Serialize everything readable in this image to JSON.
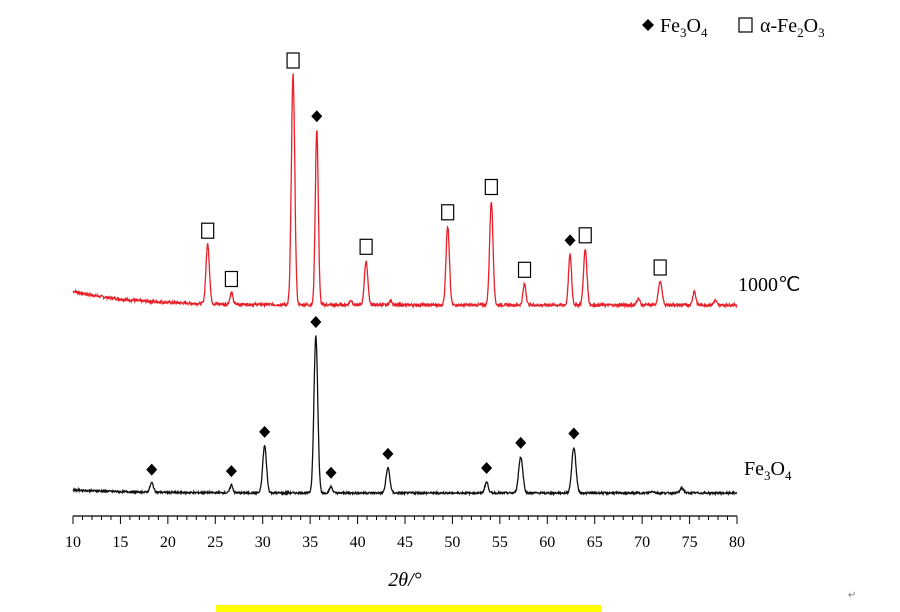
{
  "chart_data": {
    "type": "line",
    "xlabel": "2θ/°",
    "xlim": [
      10,
      80
    ],
    "x_ticks": [
      "10",
      "15",
      "20",
      "25",
      "30",
      "35",
      "40",
      "45",
      "50",
      "55",
      "60",
      "65",
      "70",
      "75",
      "80"
    ],
    "grid": false,
    "legend": {
      "placement": "top-right",
      "entries": [
        {
          "marker": "diamond-filled",
          "label_main": "Fe",
          "sub1": "3",
          "label_mid": "O",
          "sub2": "4"
        },
        {
          "marker": "square-open",
          "label_main": "α-Fe",
          "sub1": "2",
          "label_mid": "O",
          "sub2": "3"
        }
      ]
    },
    "series": [
      {
        "name": "1000℃",
        "label_text": "1000℃",
        "color": "#e8202a",
        "baseline": 0.06,
        "peaks": [
          {
            "x": 24.2,
            "h": 0.26,
            "w": 0.18,
            "marker": "square-open"
          },
          {
            "x": 26.7,
            "h": 0.05,
            "w": 0.15,
            "marker": "square-open"
          },
          {
            "x": 33.2,
            "h": 1.0,
            "w": 0.18,
            "marker": "square-open"
          },
          {
            "x": 35.7,
            "h": 0.76,
            "w": 0.16,
            "marker": "diamond-filled"
          },
          {
            "x": 39.3,
            "h": 0.02,
            "w": 0.15,
            "marker": ""
          },
          {
            "x": 40.9,
            "h": 0.19,
            "w": 0.18,
            "marker": "square-open"
          },
          {
            "x": 43.5,
            "h": 0.02,
            "w": 0.15,
            "marker": ""
          },
          {
            "x": 49.5,
            "h": 0.34,
            "w": 0.18,
            "marker": "square-open"
          },
          {
            "x": 54.1,
            "h": 0.45,
            "w": 0.18,
            "marker": "square-open"
          },
          {
            "x": 57.6,
            "h": 0.09,
            "w": 0.16,
            "marker": "square-open"
          },
          {
            "x": 62.4,
            "h": 0.22,
            "w": 0.16,
            "marker": "diamond-filled"
          },
          {
            "x": 64.0,
            "h": 0.24,
            "w": 0.18,
            "marker": "square-open"
          },
          {
            "x": 69.6,
            "h": 0.03,
            "w": 0.15,
            "marker": ""
          },
          {
            "x": 71.9,
            "h": 0.1,
            "w": 0.2,
            "marker": "square-open"
          },
          {
            "x": 75.5,
            "h": 0.06,
            "w": 0.16,
            "marker": ""
          },
          {
            "x": 77.7,
            "h": 0.02,
            "w": 0.15,
            "marker": ""
          }
        ]
      },
      {
        "name": "Fe3O4",
        "label_text": "Fe",
        "label_sub1": "3",
        "label_mid": "O",
        "label_sub2": "4",
        "color": "#111111",
        "baseline": 0.02,
        "peaks": [
          {
            "x": 18.3,
            "h": 0.06,
            "w": 0.18,
            "marker": "diamond-filled"
          },
          {
            "x": 26.7,
            "h": 0.05,
            "w": 0.15,
            "marker": "diamond-filled"
          },
          {
            "x": 30.2,
            "h": 0.3,
            "w": 0.2,
            "marker": "diamond-filled"
          },
          {
            "x": 35.6,
            "h": 1.0,
            "w": 0.2,
            "marker": "diamond-filled"
          },
          {
            "x": 37.2,
            "h": 0.04,
            "w": 0.16,
            "marker": "diamond-filled"
          },
          {
            "x": 43.2,
            "h": 0.16,
            "w": 0.2,
            "marker": "diamond-filled"
          },
          {
            "x": 53.6,
            "h": 0.07,
            "w": 0.18,
            "marker": "diamond-filled"
          },
          {
            "x": 57.2,
            "h": 0.23,
            "w": 0.22,
            "marker": "diamond-filled"
          },
          {
            "x": 62.8,
            "h": 0.29,
            "w": 0.22,
            "marker": "diamond-filled"
          },
          {
            "x": 71.1,
            "h": 0.01,
            "w": 0.2,
            "marker": ""
          },
          {
            "x": 74.2,
            "h": 0.03,
            "w": 0.2,
            "marker": ""
          }
        ]
      }
    ]
  },
  "decor": {
    "highlight_color": "#ffff00",
    "return_glyph": "↵"
  }
}
